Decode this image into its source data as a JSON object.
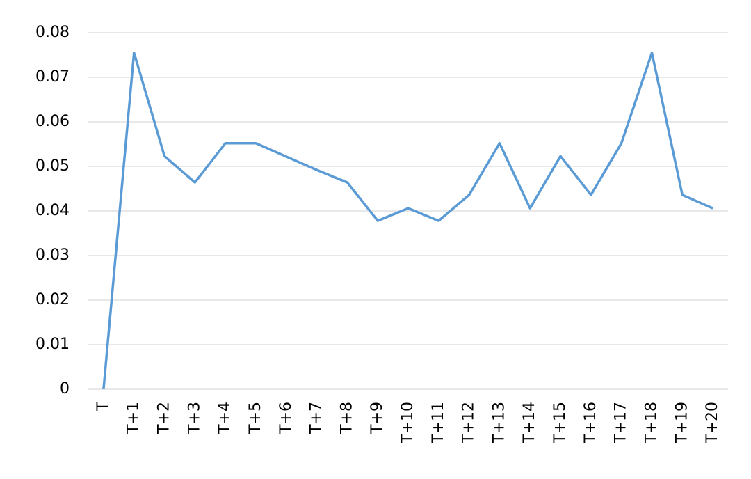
{
  "chart_data": {
    "type": "line",
    "categories": [
      "T",
      "T+1",
      "T+2",
      "T+3",
      "T+4",
      "T+5",
      "T+6",
      "T+7",
      "T+8",
      "T+9",
      "T+10",
      "T+11",
      "T+12",
      "T+13",
      "T+14",
      "T+15",
      "T+16",
      "T+17",
      "T+18",
      "T+19",
      "T+20"
    ],
    "values": [
      0,
      0.0755,
      0.0523,
      0.0464,
      0.0552,
      0.0552,
      0.0522,
      0.0492,
      0.0464,
      0.0378,
      0.0406,
      0.0378,
      0.0436,
      0.0552,
      0.0406,
      0.0523,
      0.0436,
      0.0552,
      0.0755,
      0.0436,
      0.0406
    ],
    "color": "#5b9bd5",
    "ylim": [
      0,
      0.08
    ],
    "yticks": [
      0,
      0.01,
      0.02,
      0.03,
      0.04,
      0.05,
      0.06,
      0.07,
      0.08
    ],
    "grid": true
  }
}
